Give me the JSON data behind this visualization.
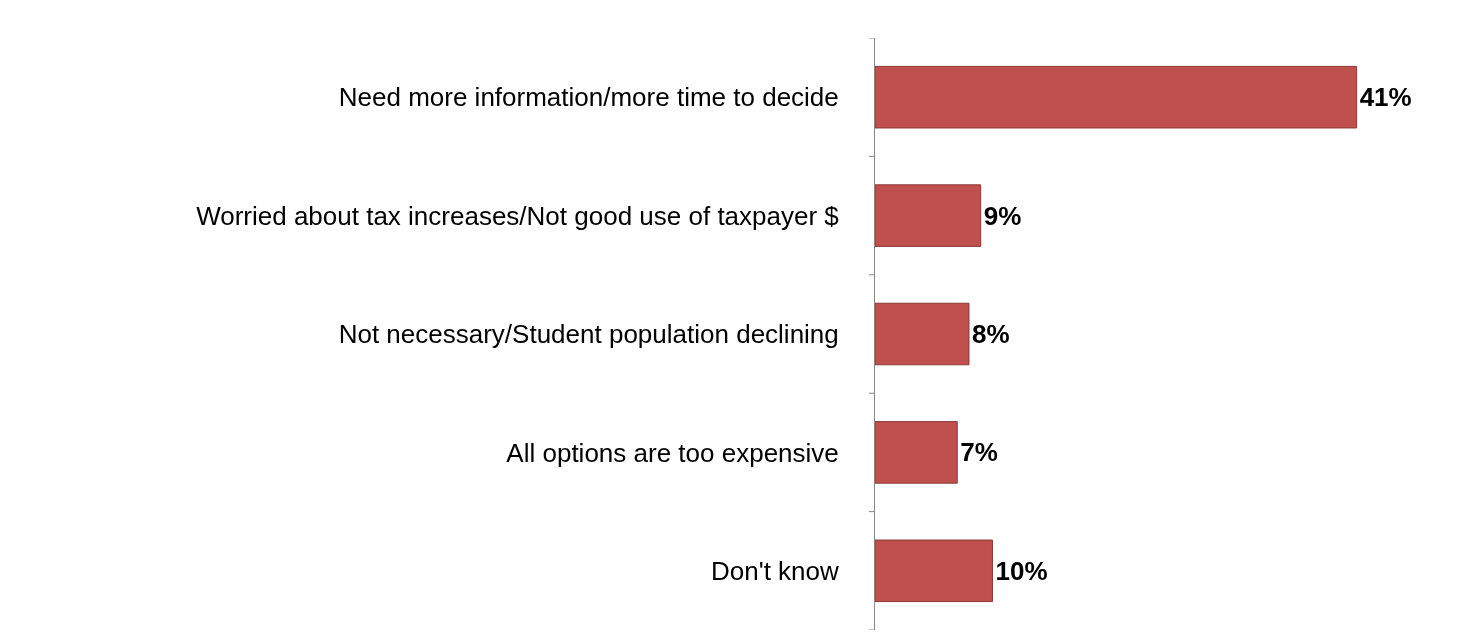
{
  "chart_data": {
    "type": "bar",
    "orientation": "horizontal",
    "categories": [
      "Need more information/more time to decide",
      "Worried about tax increases/Not good use of taxpayer $",
      "Not necessary/Student population declining",
      "All options are too expensive",
      "Don't know"
    ],
    "values": [
      41,
      9,
      8,
      7,
      10
    ],
    "value_labels": [
      "41%",
      "9%",
      "8%",
      "7%",
      "10%"
    ],
    "color": "#c0504d",
    "tick_labels": "y"
  }
}
